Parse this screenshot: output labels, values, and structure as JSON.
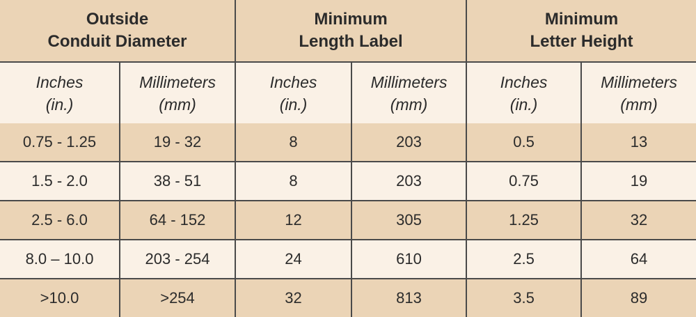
{
  "table": {
    "groups": [
      {
        "lines": [
          "Outside",
          "Conduit Diameter"
        ]
      },
      {
        "lines": [
          "Minimum",
          "Length Label"
        ]
      },
      {
        "lines": [
          "Minimum",
          "Letter Height"
        ]
      }
    ],
    "subheaders": [
      {
        "lines": [
          "Inches",
          "(in.)"
        ]
      },
      {
        "lines": [
          "Millimeters",
          "(mm)"
        ]
      },
      {
        "lines": [
          "Inches",
          "(in.)"
        ]
      },
      {
        "lines": [
          "Millimeters",
          "(mm)"
        ]
      },
      {
        "lines": [
          "Inches",
          "(in.)"
        ]
      },
      {
        "lines": [
          "Millimeters",
          "(mm)"
        ]
      }
    ],
    "rows": [
      [
        "0.75 - 1.25",
        "19 - 32",
        "8",
        "203",
        "0.5",
        "13"
      ],
      [
        "1.5 - 2.0",
        "38 - 51",
        "8",
        "203",
        "0.75",
        "19"
      ],
      [
        "2.5 - 6.0",
        "64 - 152",
        "12",
        "305",
        "1.25",
        "32"
      ],
      [
        "8.0 – 10.0",
        "203 - 254",
        "24",
        "610",
        "2.5",
        "64"
      ],
      [
        ">10.0",
        ">254",
        "32",
        "813",
        "3.5",
        "89"
      ]
    ]
  }
}
